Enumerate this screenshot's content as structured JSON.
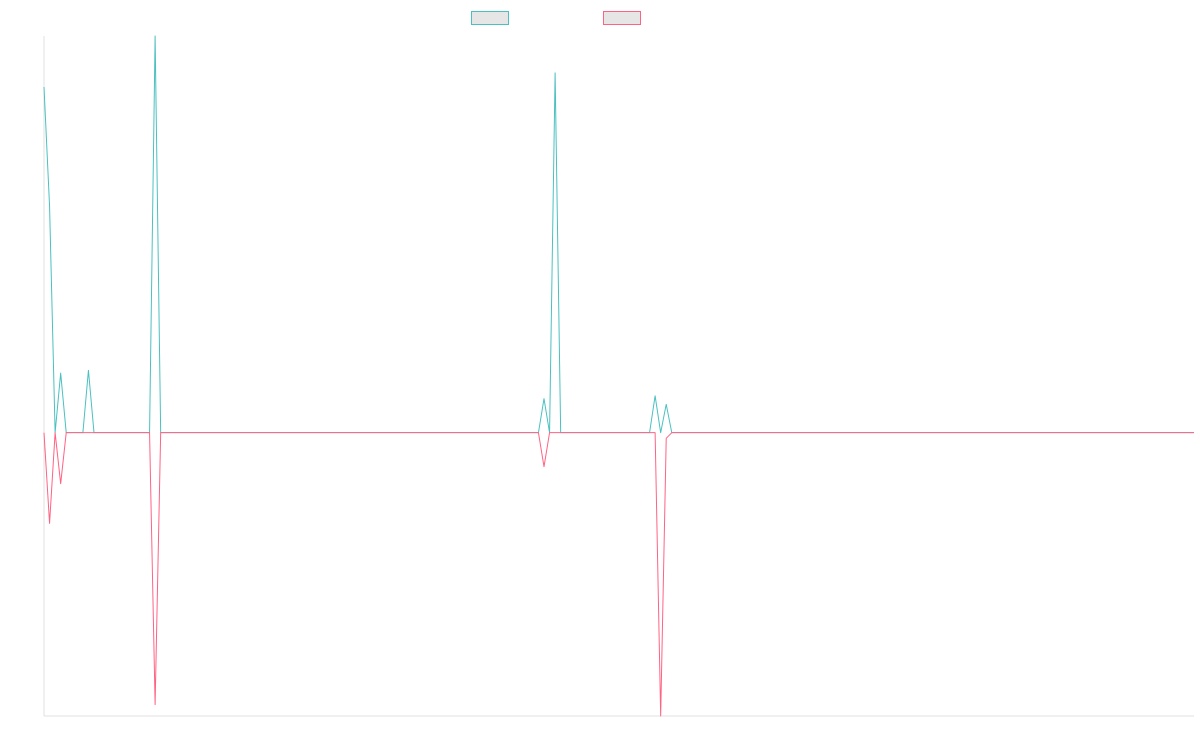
{
  "chart_data": {
    "type": "line",
    "title": "",
    "xlabel": "",
    "ylabel": "",
    "grid": false,
    "legend_placement": "top-center",
    "x_count": 208,
    "ylim": [
      -1,
      1.4
    ],
    "series": [
      {
        "color": "#4bc0c0",
        "sign": 1,
        "spikes": [
          [
            0,
            1.22
          ],
          [
            1,
            0.8
          ],
          [
            2,
            0.0
          ],
          [
            3,
            0.21
          ],
          [
            4,
            0.0
          ],
          [
            5,
            0.0
          ],
          [
            6,
            0.0
          ],
          [
            7,
            0.0
          ],
          [
            8,
            0.22
          ],
          [
            9,
            0.0
          ],
          [
            19,
            0.0
          ],
          [
            20,
            1.4
          ],
          [
            21,
            0.0
          ],
          [
            89,
            0.0
          ],
          [
            90,
            0.12
          ],
          [
            91,
            0.0
          ],
          [
            92,
            1.27
          ],
          [
            93,
            0.0
          ],
          [
            109,
            0.0
          ],
          [
            110,
            0.13
          ],
          [
            111,
            0.0
          ],
          [
            112,
            0.1
          ],
          [
            113,
            0.0
          ]
        ]
      },
      {
        "color": "#ff6384",
        "sign": -1,
        "spikes": [
          [
            0,
            0.0
          ],
          [
            1,
            -0.32
          ],
          [
            2,
            0.0
          ],
          [
            3,
            -0.18
          ],
          [
            4,
            0.0
          ],
          [
            19,
            0.0
          ],
          [
            20,
            -0.96
          ],
          [
            21,
            0.0
          ],
          [
            89,
            0.0
          ],
          [
            90,
            -0.12
          ],
          [
            91,
            0.0
          ],
          [
            110,
            0.0
          ],
          [
            111,
            -1.0
          ],
          [
            112,
            -0.02
          ],
          [
            113,
            0.0
          ]
        ]
      }
    ],
    "legend": [
      {
        "label": "",
        "color": "#4bc0c0"
      },
      {
        "label": "",
        "color": "#ff6384"
      }
    ]
  }
}
